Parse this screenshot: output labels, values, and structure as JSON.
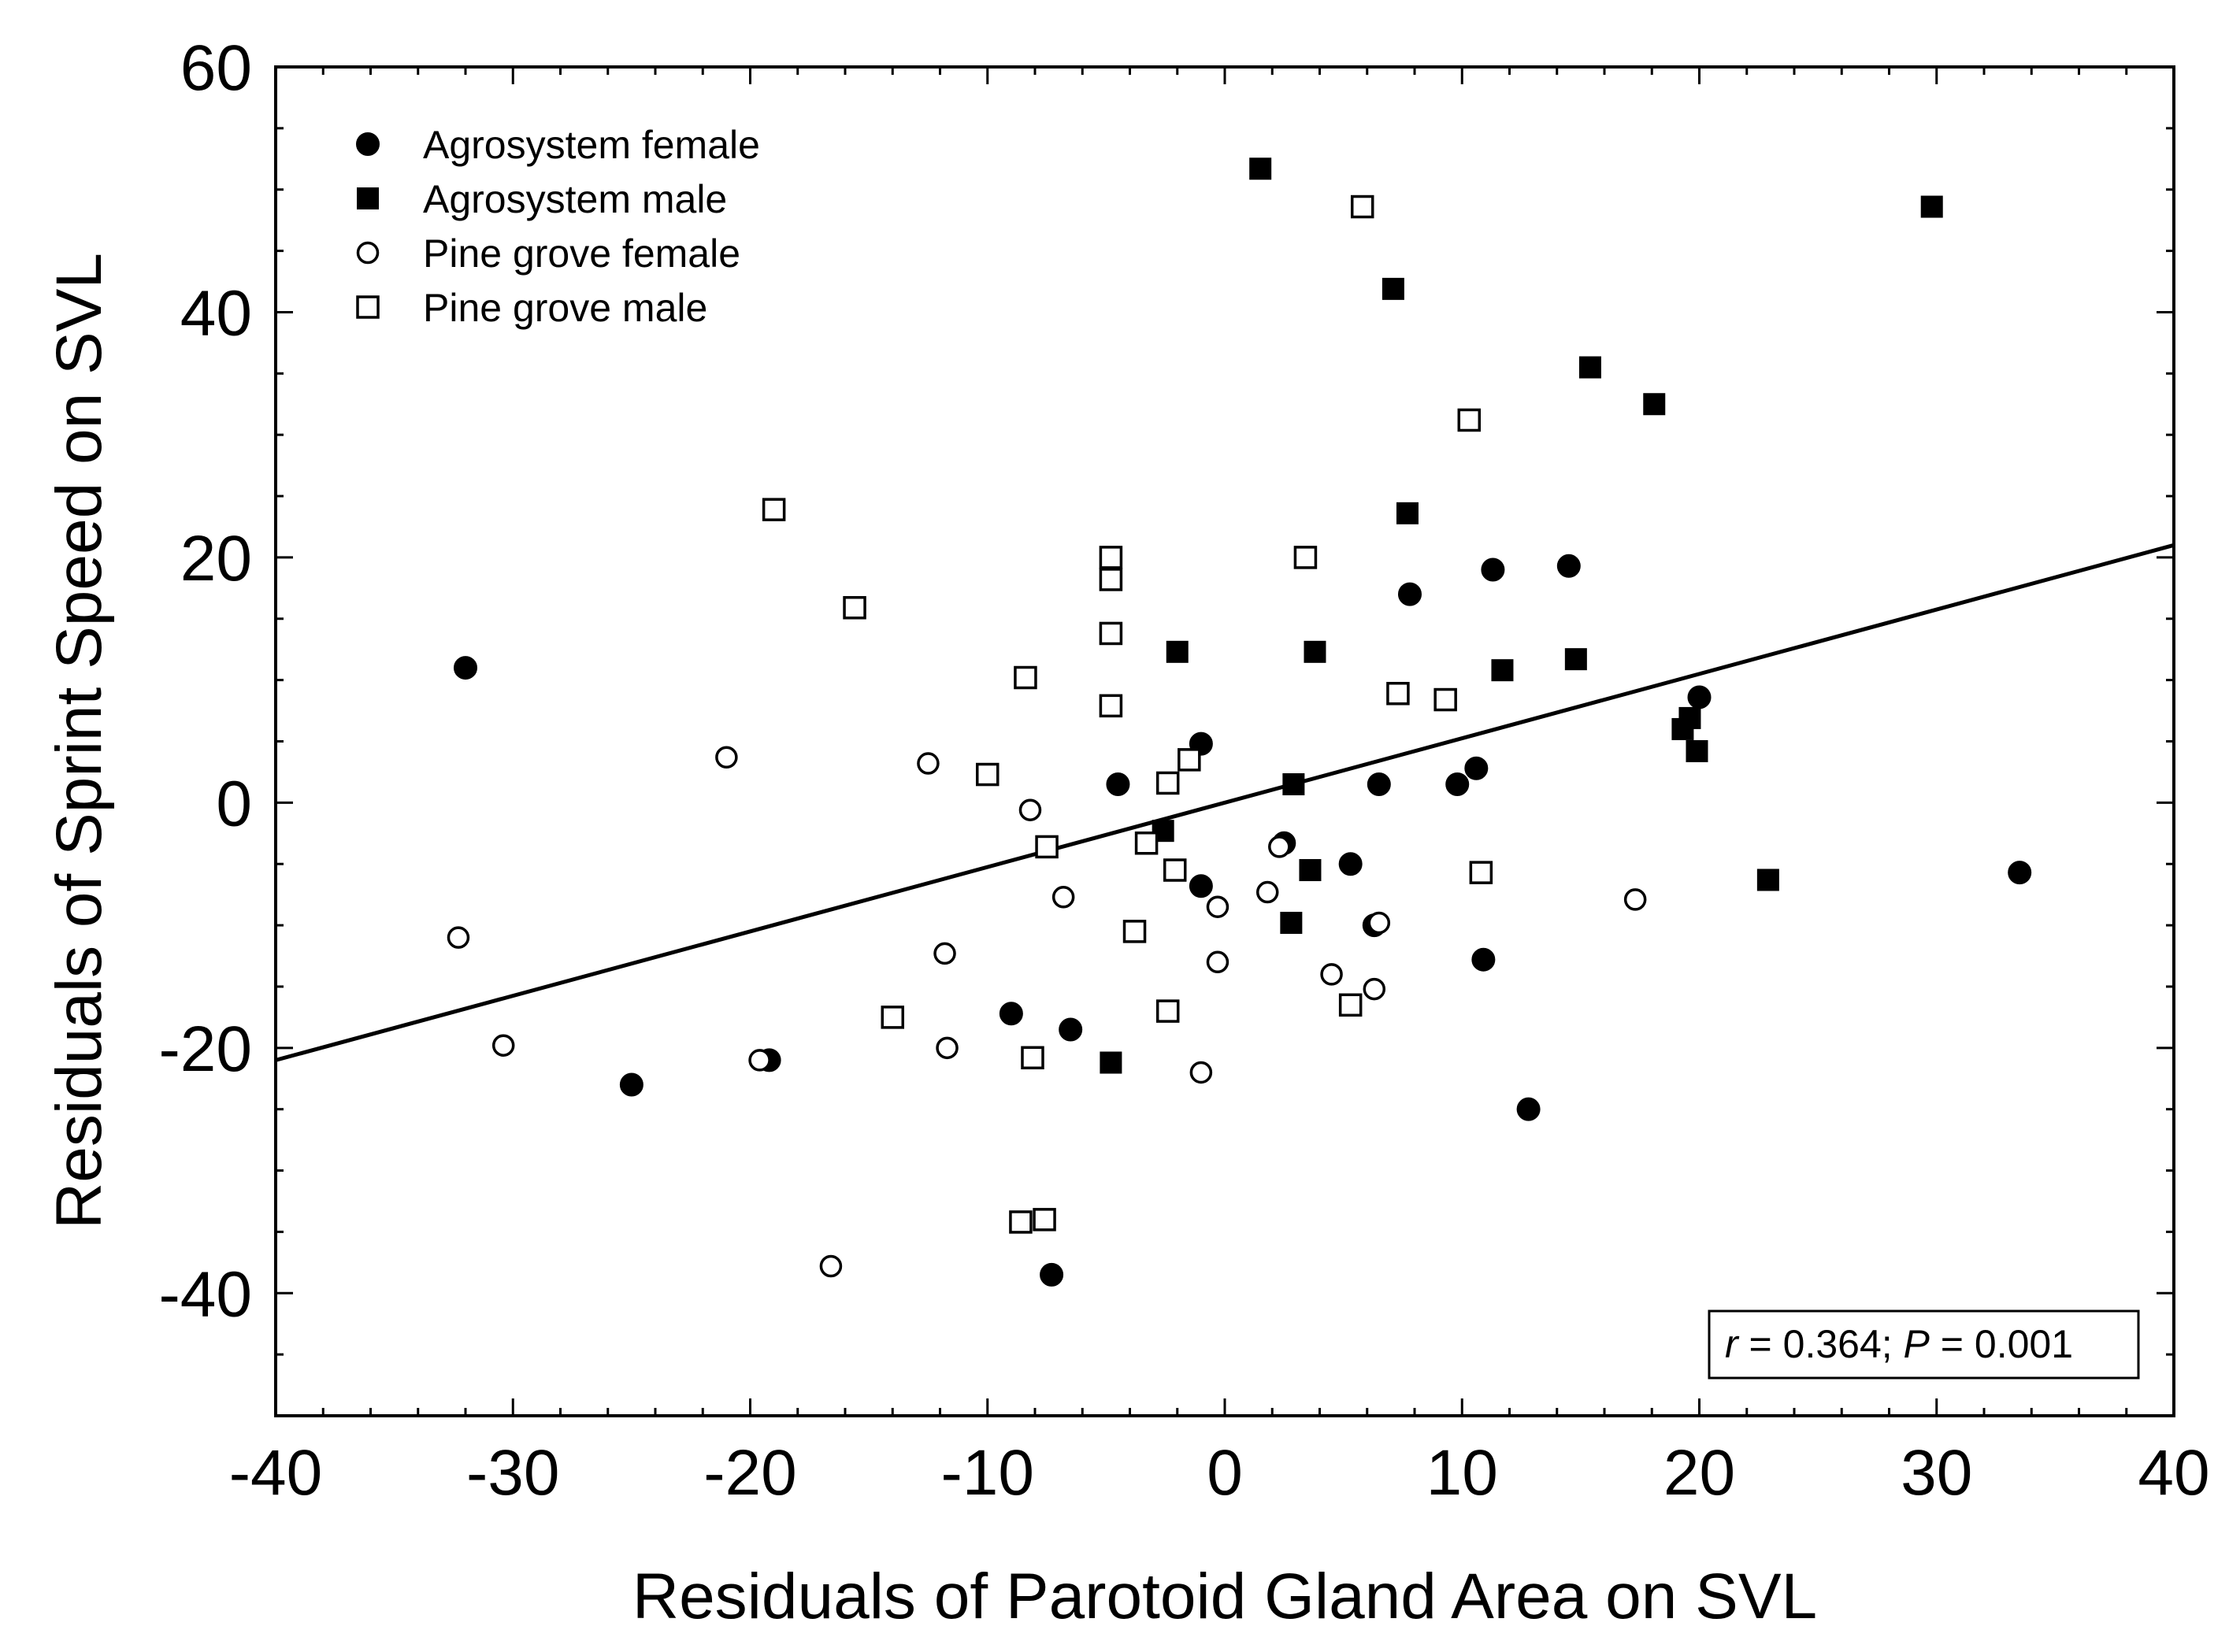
{
  "chart_data": {
    "type": "scatter",
    "title": "",
    "xlabel": "Residuals of Parotoid Gland Area on SVL",
    "ylabel": "Residuals of Sprint Speed on SVL",
    "xlim": [
      -40,
      40
    ],
    "ylim": [
      -50,
      60
    ],
    "x_ticks": [
      -40,
      -30,
      -20,
      -10,
      0,
      10,
      20,
      30,
      40
    ],
    "y_ticks": [
      -40,
      -20,
      0,
      20,
      40,
      60
    ],
    "x_tick_labels": [
      "-40",
      "-30",
      "-20",
      "-10",
      "0",
      "10",
      "20",
      "30",
      "40"
    ],
    "y_tick_labels": [
      "-40",
      "-20",
      "0",
      "20",
      "40",
      "60"
    ],
    "grid": false,
    "legend_position": "top-left",
    "regression_line": {
      "x": [
        -40,
        40
      ],
      "y": [
        -21,
        21
      ]
    },
    "annotation": {
      "r_symbol": "r",
      "r_text": " = 0.364; ",
      "p_symbol": "P",
      "p_text": " = 0.001"
    },
    "series": [
      {
        "name": "Agrosystem female",
        "marker": "circle",
        "fill": "#000000",
        "points": [
          [
            -32.0,
            11.0
          ],
          [
            -25.0,
            -23.0
          ],
          [
            -19.2,
            -21.0
          ],
          [
            -9.0,
            -17.2
          ],
          [
            -7.3,
            -38.5
          ],
          [
            -6.5,
            -18.5
          ],
          [
            -4.5,
            1.5
          ],
          [
            -1.0,
            4.8
          ],
          [
            -1.0,
            -6.8
          ],
          [
            2.5,
            -3.3
          ],
          [
            5.3,
            -5.0
          ],
          [
            6.3,
            -10.0
          ],
          [
            6.5,
            1.5
          ],
          [
            7.8,
            17.0
          ],
          [
            9.8,
            1.5
          ],
          [
            10.6,
            2.8
          ],
          [
            10.9,
            -12.8
          ],
          [
            11.3,
            19.0
          ],
          [
            12.8,
            -25.0
          ],
          [
            14.5,
            19.3
          ],
          [
            20.0,
            8.6
          ],
          [
            33.5,
            -5.7
          ]
        ]
      },
      {
        "name": "Agrosystem male",
        "marker": "square",
        "fill": "#000000",
        "points": [
          [
            -4.8,
            -21.2
          ],
          [
            -2.6,
            -2.3
          ],
          [
            -2.0,
            12.3
          ],
          [
            1.5,
            51.7
          ],
          [
            2.8,
            -9.8
          ],
          [
            2.9,
            1.5
          ],
          [
            3.6,
            -5.5
          ],
          [
            3.8,
            12.3
          ],
          [
            7.1,
            41.9
          ],
          [
            7.7,
            23.6
          ],
          [
            11.7,
            10.8
          ],
          [
            14.8,
            11.7
          ],
          [
            15.4,
            35.5
          ],
          [
            18.1,
            32.5
          ],
          [
            19.3,
            6.0
          ],
          [
            19.6,
            6.9
          ],
          [
            19.9,
            4.2
          ],
          [
            22.9,
            -6.3
          ],
          [
            29.8,
            48.6
          ]
        ]
      },
      {
        "name": "Pine grove female",
        "marker": "circle",
        "fill": "#ffffff",
        "points": [
          [
            -32.3,
            -11.0
          ],
          [
            -30.4,
            -19.8
          ],
          [
            -21.0,
            3.7
          ],
          [
            -19.6,
            -21.0
          ],
          [
            -16.6,
            -37.8
          ],
          [
            -12.5,
            3.2
          ],
          [
            -11.8,
            -12.3
          ],
          [
            -11.7,
            -20.0
          ],
          [
            -8.2,
            -0.6
          ],
          [
            -7.5,
            -3.6
          ],
          [
            -6.8,
            -7.7
          ],
          [
            -1.0,
            -22.0
          ],
          [
            -0.3,
            -8.5
          ],
          [
            -0.3,
            -13.0
          ],
          [
            1.8,
            -7.3
          ],
          [
            2.3,
            -3.6
          ],
          [
            4.5,
            -14.0
          ],
          [
            6.3,
            -15.2
          ],
          [
            6.5,
            -9.8
          ],
          [
            17.3,
            -7.9
          ]
        ]
      },
      {
        "name": "Pine grove male",
        "marker": "square",
        "fill": "#ffffff",
        "points": [
          [
            -19.0,
            23.9
          ],
          [
            -15.6,
            15.9
          ],
          [
            -14.0,
            -17.5
          ],
          [
            -10.0,
            2.3
          ],
          [
            -8.6,
            -34.2
          ],
          [
            -8.4,
            10.2
          ],
          [
            -8.1,
            -20.8
          ],
          [
            -7.6,
            -34.0
          ],
          [
            -7.5,
            -3.6
          ],
          [
            -4.8,
            20.0
          ],
          [
            -4.8,
            18.2
          ],
          [
            -4.8,
            13.8
          ],
          [
            -4.8,
            7.9
          ],
          [
            -3.3,
            -3.3
          ],
          [
            -3.8,
            -10.5
          ],
          [
            -2.4,
            1.6
          ],
          [
            -2.4,
            -17.0
          ],
          [
            -2.1,
            -5.5
          ],
          [
            -1.5,
            3.5
          ],
          [
            3.4,
            20.0
          ],
          [
            5.3,
            -16.5
          ],
          [
            5.8,
            48.6
          ],
          [
            7.3,
            8.9
          ],
          [
            9.3,
            8.4
          ],
          [
            10.3,
            31.2
          ],
          [
            10.8,
            -5.7
          ]
        ]
      }
    ]
  }
}
